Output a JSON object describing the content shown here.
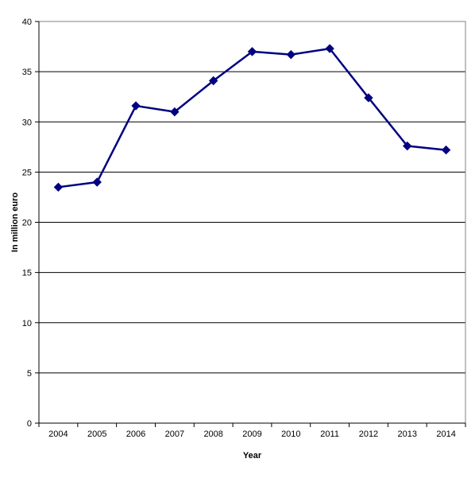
{
  "chart_data": {
    "type": "line",
    "title": "",
    "xlabel": "Year",
    "ylabel": "In million euro",
    "categories": [
      "2004",
      "2005",
      "2006",
      "2007",
      "2008",
      "2009",
      "2010",
      "2011",
      "2012",
      "2013",
      "2014"
    ],
    "series": [
      {
        "values": [
          23.5,
          24.0,
          31.6,
          31.0,
          34.1,
          37.0,
          36.7,
          37.3,
          32.4,
          27.6,
          27.2
        ],
        "color": "#000080",
        "marker": "diamond"
      }
    ],
    "ylim": [
      0,
      40
    ],
    "yticks": [
      0,
      5,
      10,
      15,
      20,
      25,
      30,
      35,
      40
    ],
    "grid": true,
    "legend": "none"
  }
}
